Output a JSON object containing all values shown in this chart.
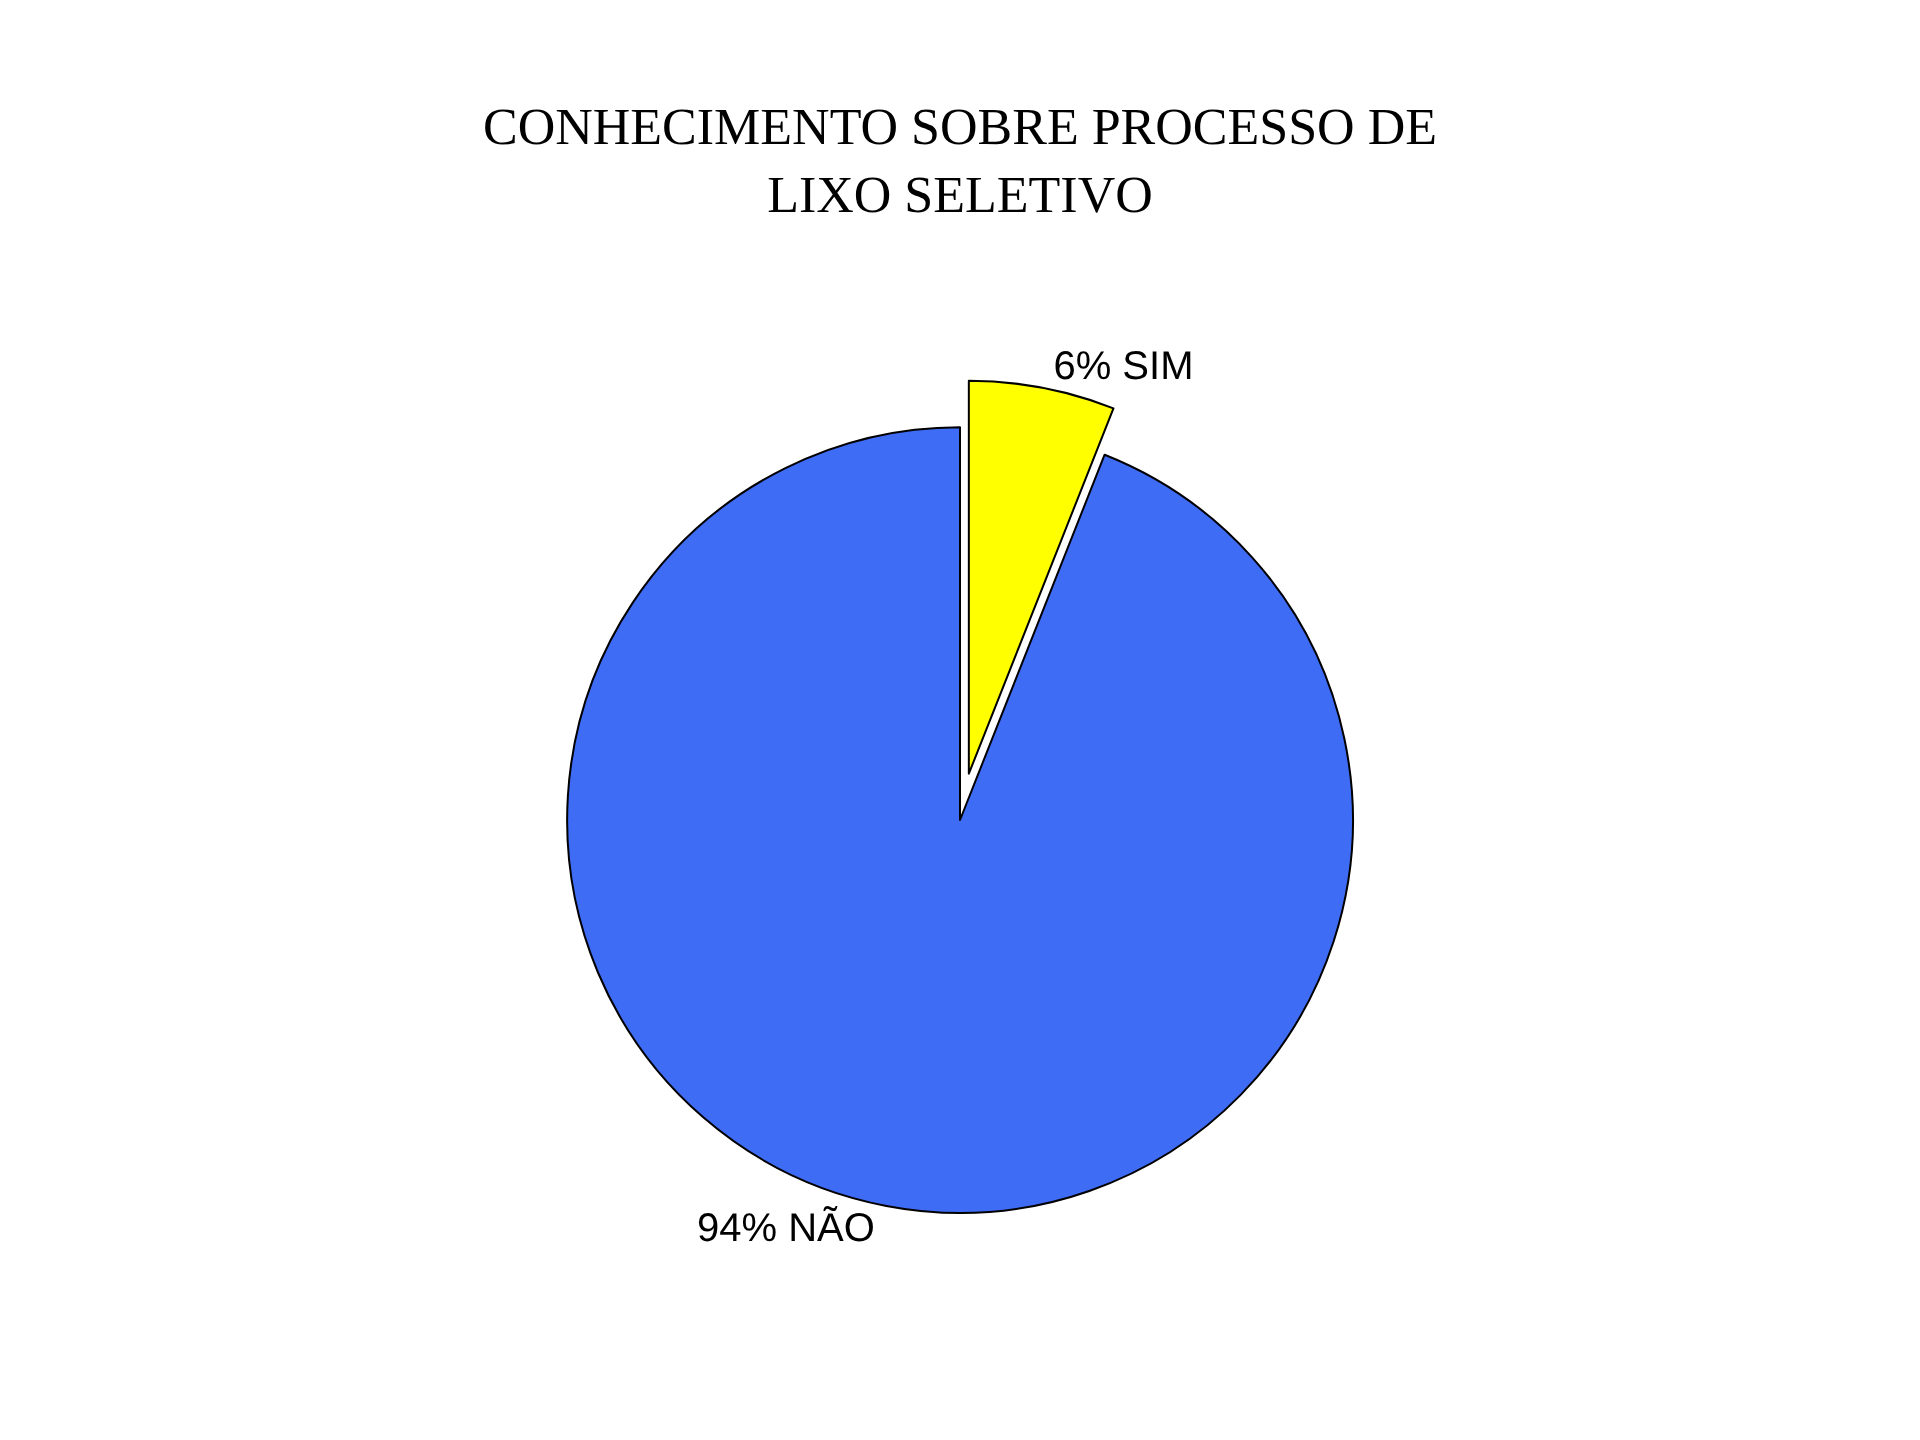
{
  "chart_data": {
    "type": "pie",
    "title": "CONHECIMENTO SOBRE PROCESSO DE\nLIXO SELETIVO",
    "categories": [
      "SIM",
      "NÃO"
    ],
    "values": [
      6,
      94
    ],
    "colors": [
      "#ffff00",
      "#3f6cf5"
    ],
    "value_labels": [
      "6%",
      "94%"
    ],
    "legend": false
  }
}
